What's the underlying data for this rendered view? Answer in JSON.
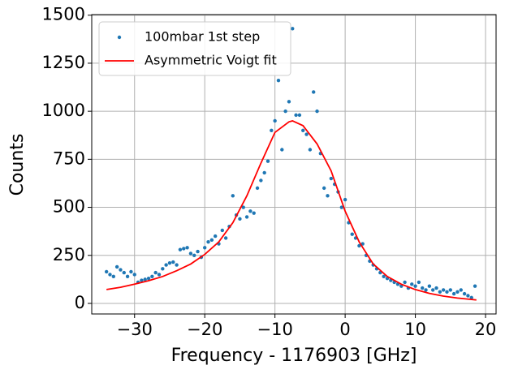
{
  "chart_data": {
    "type": "scatter_line",
    "xlabel": "Frequency - 1176903 [GHz]",
    "ylabel": "Counts",
    "xlim": [
      -36.1,
      21.5
    ],
    "ylim": [
      -55,
      1503
    ],
    "xticks": [
      {
        "value": -30,
        "label": "−30"
      },
      {
        "value": -20,
        "label": "−20"
      },
      {
        "value": -10,
        "label": "−10"
      },
      0,
      10,
      20
    ],
    "yticks": [
      0,
      250,
      500,
      750,
      1000,
      1250,
      1500
    ],
    "grid": true,
    "legend": "upper-left",
    "series": [
      {
        "name": "100mbar 1st step",
        "kind": "scatter",
        "color": "#1f77b4",
        "x": [
          -34,
          -33.5,
          -33,
          -32.5,
          -32,
          -31.5,
          -31,
          -30.5,
          -30,
          -29.5,
          -29,
          -28.5,
          -28,
          -27.5,
          -27,
          -26.5,
          -26,
          -25.5,
          -25,
          -24.5,
          -24,
          -23.5,
          -23,
          -22.5,
          -22,
          -21.5,
          -21,
          -20.5,
          -20,
          -19.5,
          -19,
          -18.5,
          -18,
          -17.5,
          -17,
          -16.5,
          -16,
          -15.5,
          -15,
          -14.5,
          -14,
          -13.5,
          -13,
          -12.5,
          -12,
          -11.5,
          -11,
          -10.5,
          -10,
          -9.5,
          -9,
          -8.5,
          -8,
          -7.5,
          -7,
          -6.5,
          -6,
          -5.5,
          -5,
          -4.5,
          -4,
          -3.5,
          -3,
          -2.5,
          -2,
          -1.5,
          -1,
          -0.5,
          0,
          0.5,
          1,
          1.5,
          2,
          2.5,
          3,
          3.5,
          4,
          4.5,
          5,
          5.5,
          6,
          6.5,
          7,
          7.5,
          8,
          8.5,
          9,
          9.5,
          10,
          10.5,
          11,
          11.5,
          12,
          12.5,
          13,
          13.5,
          14,
          14.5,
          15,
          15.5,
          16,
          16.5,
          17,
          17.5,
          18,
          18.5
        ],
        "values": [
          165,
          150,
          140,
          190,
          175,
          160,
          140,
          165,
          150,
          110,
          120,
          125,
          130,
          140,
          160,
          150,
          180,
          200,
          210,
          215,
          200,
          280,
          285,
          290,
          260,
          250,
          270,
          240,
          290,
          320,
          330,
          350,
          310,
          380,
          340,
          400,
          560,
          460,
          440,
          500,
          450,
          480,
          470,
          600,
          640,
          680,
          740,
          900,
          950,
          1160,
          800,
          1000,
          1050,
          1430,
          980,
          980,
          900,
          880,
          800,
          1100,
          1000,
          780,
          600,
          560,
          650,
          620,
          580,
          500,
          540,
          420,
          360,
          340,
          300,
          310,
          250,
          220,
          200,
          180,
          160,
          140,
          130,
          120,
          110,
          100,
          90,
          110,
          80,
          100,
          90,
          110,
          80,
          70,
          90,
          70,
          80,
          60,
          70,
          60,
          70,
          50,
          60,
          70,
          50,
          40,
          30,
          90
        ]
      },
      {
        "name": "Asymmetric Voigt fit",
        "kind": "line",
        "color": "#ff0000",
        "x": [
          -34,
          -32,
          -30,
          -28,
          -26,
          -24,
          -22,
          -20,
          -18,
          -16,
          -14,
          -12,
          -10,
          -8,
          -7.5,
          -6,
          -4,
          -2,
          0,
          2,
          4,
          6,
          8,
          10,
          12,
          14,
          16,
          18.7
        ],
        "values": [
          72,
          84,
          100,
          118,
          140,
          170,
          205,
          255,
          320,
          420,
          560,
          730,
          890,
          945,
          950,
          925,
          830,
          690,
          480,
          320,
          205,
          140,
          100,
          72,
          52,
          38,
          28,
          18
        ]
      }
    ]
  }
}
